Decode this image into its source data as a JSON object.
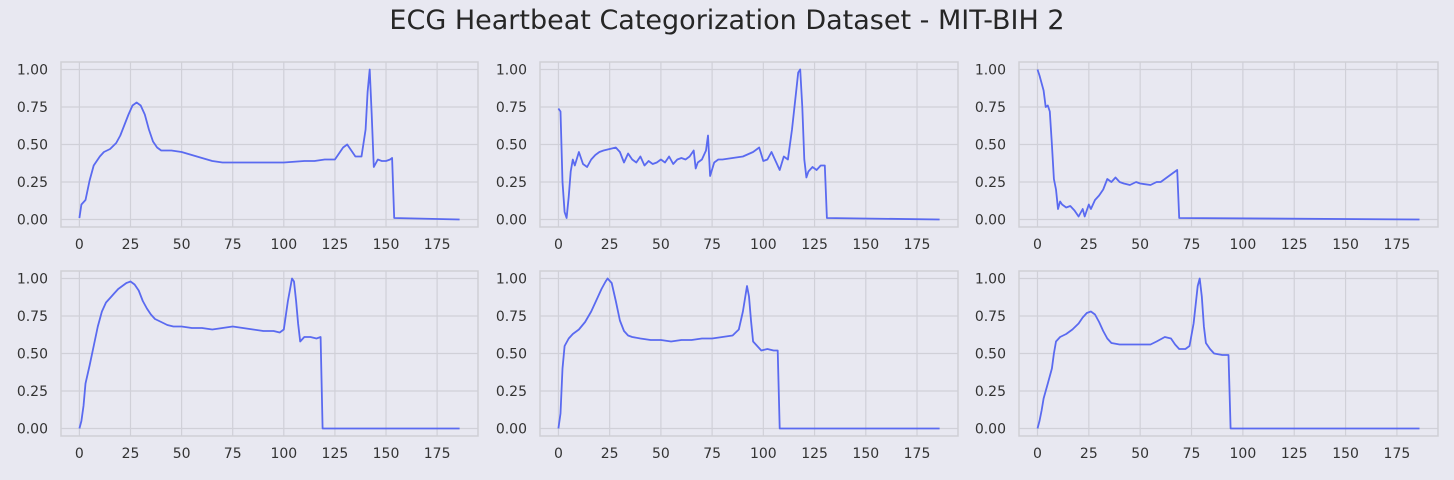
{
  "figure": {
    "title": "ECG Heartbeat Categorization Dataset - MIT-BIH 2"
  },
  "style": {
    "background": "#e8e8f1",
    "plot_background": "#e8e8f1",
    "grid_color": "#d0d0d8",
    "line_color": "#5a6af0",
    "text_color": "#333333"
  },
  "chart_data": [
    {
      "type": "line",
      "xlim": [
        -9,
        195
      ],
      "ylim": [
        -0.05,
        1.05
      ],
      "xticks": [
        0,
        25,
        50,
        75,
        100,
        125,
        150,
        175
      ],
      "yticks": [
        0.0,
        0.25,
        0.5,
        0.75,
        1.0
      ],
      "xtick_labels": [
        "0",
        "25",
        "50",
        "75",
        "100",
        "125",
        "150",
        "175"
      ],
      "ytick_labels": [
        "0.00",
        "0.25",
        "0.50",
        "0.75",
        "1.00"
      ],
      "grid": true,
      "x_end": 186,
      "points": [
        [
          0,
          0.01
        ],
        [
          1,
          0.1
        ],
        [
          3,
          0.13
        ],
        [
          5,
          0.26
        ],
        [
          7,
          0.36
        ],
        [
          10,
          0.42
        ],
        [
          12,
          0.45
        ],
        [
          15,
          0.47
        ],
        [
          18,
          0.51
        ],
        [
          20,
          0.56
        ],
        [
          22,
          0.63
        ],
        [
          24,
          0.7
        ],
        [
          26,
          0.76
        ],
        [
          28,
          0.78
        ],
        [
          30,
          0.76
        ],
        [
          32,
          0.7
        ],
        [
          34,
          0.6
        ],
        [
          36,
          0.52
        ],
        [
          38,
          0.48
        ],
        [
          40,
          0.46
        ],
        [
          45,
          0.46
        ],
        [
          50,
          0.45
        ],
        [
          55,
          0.43
        ],
        [
          60,
          0.41
        ],
        [
          65,
          0.39
        ],
        [
          70,
          0.38
        ],
        [
          80,
          0.38
        ],
        [
          90,
          0.38
        ],
        [
          100,
          0.38
        ],
        [
          110,
          0.39
        ],
        [
          115,
          0.39
        ],
        [
          120,
          0.4
        ],
        [
          125,
          0.4
        ],
        [
          127,
          0.44
        ],
        [
          129,
          0.48
        ],
        [
          131,
          0.5
        ],
        [
          133,
          0.46
        ],
        [
          135,
          0.42
        ],
        [
          138,
          0.42
        ],
        [
          140,
          0.6
        ],
        [
          141,
          0.85
        ],
        [
          142,
          1.0
        ],
        [
          143,
          0.7
        ],
        [
          144,
          0.35
        ],
        [
          146,
          0.4
        ],
        [
          148,
          0.39
        ],
        [
          150,
          0.39
        ],
        [
          152,
          0.4
        ],
        [
          153,
          0.41
        ],
        [
          154,
          0.01
        ],
        [
          186,
          0.0
        ]
      ]
    },
    {
      "type": "line",
      "xlim": [
        -9,
        195
      ],
      "ylim": [
        -0.05,
        1.05
      ],
      "xticks": [
        0,
        25,
        50,
        75,
        100,
        125,
        150,
        175
      ],
      "yticks": [
        0.0,
        0.25,
        0.5,
        0.75,
        1.0
      ],
      "xtick_labels": [
        "0",
        "25",
        "50",
        "75",
        "100",
        "125",
        "150",
        "175"
      ],
      "ytick_labels": [
        "0.00",
        "0.25",
        "0.50",
        "0.75",
        "1.00"
      ],
      "grid": true,
      "x_end": 186,
      "points": [
        [
          0,
          0.74
        ],
        [
          1,
          0.72
        ],
        [
          2,
          0.25
        ],
        [
          3,
          0.05
        ],
        [
          4,
          0.01
        ],
        [
          5,
          0.15
        ],
        [
          6,
          0.32
        ],
        [
          7,
          0.4
        ],
        [
          8,
          0.36
        ],
        [
          10,
          0.45
        ],
        [
          12,
          0.37
        ],
        [
          14,
          0.35
        ],
        [
          16,
          0.4
        ],
        [
          18,
          0.43
        ],
        [
          20,
          0.45
        ],
        [
          22,
          0.46
        ],
        [
          25,
          0.47
        ],
        [
          28,
          0.48
        ],
        [
          30,
          0.45
        ],
        [
          32,
          0.38
        ],
        [
          34,
          0.44
        ],
        [
          36,
          0.4
        ],
        [
          38,
          0.38
        ],
        [
          40,
          0.42
        ],
        [
          42,
          0.36
        ],
        [
          44,
          0.39
        ],
        [
          46,
          0.37
        ],
        [
          48,
          0.38
        ],
        [
          50,
          0.4
        ],
        [
          52,
          0.38
        ],
        [
          54,
          0.42
        ],
        [
          56,
          0.37
        ],
        [
          58,
          0.4
        ],
        [
          60,
          0.41
        ],
        [
          62,
          0.4
        ],
        [
          64,
          0.42
        ],
        [
          66,
          0.46
        ],
        [
          67,
          0.34
        ],
        [
          68,
          0.38
        ],
        [
          70,
          0.4
        ],
        [
          72,
          0.46
        ],
        [
          73,
          0.56
        ],
        [
          74,
          0.29
        ],
        [
          76,
          0.38
        ],
        [
          78,
          0.4
        ],
        [
          80,
          0.4
        ],
        [
          85,
          0.41
        ],
        [
          90,
          0.42
        ],
        [
          95,
          0.45
        ],
        [
          98,
          0.48
        ],
        [
          100,
          0.39
        ],
        [
          102,
          0.4
        ],
        [
          104,
          0.45
        ],
        [
          106,
          0.39
        ],
        [
          108,
          0.33
        ],
        [
          110,
          0.42
        ],
        [
          112,
          0.4
        ],
        [
          114,
          0.6
        ],
        [
          116,
          0.85
        ],
        [
          117,
          0.98
        ],
        [
          118,
          1.0
        ],
        [
          119,
          0.75
        ],
        [
          120,
          0.4
        ],
        [
          121,
          0.28
        ],
        [
          122,
          0.32
        ],
        [
          124,
          0.35
        ],
        [
          126,
          0.33
        ],
        [
          128,
          0.36
        ],
        [
          130,
          0.36
        ],
        [
          131,
          0.01
        ],
        [
          186,
          0.0
        ]
      ]
    },
    {
      "type": "line",
      "xlim": [
        -9,
        195
      ],
      "ylim": [
        -0.05,
        1.05
      ],
      "xticks": [
        0,
        25,
        50,
        75,
        100,
        125,
        150,
        175
      ],
      "yticks": [
        0.0,
        0.25,
        0.5,
        0.75,
        1.0
      ],
      "xtick_labels": [
        "0",
        "25",
        "50",
        "75",
        "100",
        "125",
        "150",
        "175"
      ],
      "ytick_labels": [
        "0.00",
        "0.25",
        "0.50",
        "0.75",
        "1.00"
      ],
      "grid": true,
      "x_end": 186,
      "points": [
        [
          0,
          1.0
        ],
        [
          1,
          0.96
        ],
        [
          3,
          0.86
        ],
        [
          4,
          0.75
        ],
        [
          5,
          0.76
        ],
        [
          6,
          0.72
        ],
        [
          7,
          0.5
        ],
        [
          8,
          0.27
        ],
        [
          9,
          0.2
        ],
        [
          10,
          0.07
        ],
        [
          11,
          0.12
        ],
        [
          12,
          0.1
        ],
        [
          14,
          0.08
        ],
        [
          16,
          0.09
        ],
        [
          18,
          0.06
        ],
        [
          20,
          0.02
        ],
        [
          22,
          0.07
        ],
        [
          23,
          0.02
        ],
        [
          25,
          0.1
        ],
        [
          26,
          0.07
        ],
        [
          28,
          0.13
        ],
        [
          30,
          0.16
        ],
        [
          32,
          0.2
        ],
        [
          34,
          0.27
        ],
        [
          36,
          0.25
        ],
        [
          38,
          0.28
        ],
        [
          40,
          0.25
        ],
        [
          42,
          0.24
        ],
        [
          45,
          0.23
        ],
        [
          48,
          0.25
        ],
        [
          50,
          0.24
        ],
        [
          55,
          0.23
        ],
        [
          58,
          0.25
        ],
        [
          60,
          0.25
        ],
        [
          62,
          0.27
        ],
        [
          64,
          0.29
        ],
        [
          66,
          0.31
        ],
        [
          68,
          0.33
        ],
        [
          69,
          0.01
        ],
        [
          186,
          0.0
        ]
      ]
    },
    {
      "type": "line",
      "xlim": [
        -9,
        195
      ],
      "ylim": [
        -0.05,
        1.05
      ],
      "xticks": [
        0,
        25,
        50,
        75,
        100,
        125,
        150,
        175
      ],
      "yticks": [
        0.0,
        0.25,
        0.5,
        0.75,
        1.0
      ],
      "xtick_labels": [
        "0",
        "25",
        "50",
        "75",
        "100",
        "125",
        "150",
        "175"
      ],
      "ytick_labels": [
        "0.00",
        "0.25",
        "0.50",
        "0.75",
        "1.00"
      ],
      "grid": true,
      "x_end": 186,
      "points": [
        [
          0,
          0.0
        ],
        [
          1,
          0.05
        ],
        [
          2,
          0.15
        ],
        [
          3,
          0.3
        ],
        [
          5,
          0.42
        ],
        [
          7,
          0.55
        ],
        [
          9,
          0.68
        ],
        [
          11,
          0.78
        ],
        [
          13,
          0.84
        ],
        [
          15,
          0.87
        ],
        [
          17,
          0.9
        ],
        [
          19,
          0.93
        ],
        [
          21,
          0.95
        ],
        [
          23,
          0.97
        ],
        [
          25,
          0.98
        ],
        [
          27,
          0.96
        ],
        [
          29,
          0.92
        ],
        [
          31,
          0.85
        ],
        [
          33,
          0.8
        ],
        [
          35,
          0.76
        ],
        [
          37,
          0.73
        ],
        [
          40,
          0.71
        ],
        [
          43,
          0.69
        ],
        [
          46,
          0.68
        ],
        [
          50,
          0.68
        ],
        [
          55,
          0.67
        ],
        [
          60,
          0.67
        ],
        [
          65,
          0.66
        ],
        [
          70,
          0.67
        ],
        [
          75,
          0.68
        ],
        [
          80,
          0.67
        ],
        [
          85,
          0.66
        ],
        [
          90,
          0.65
        ],
        [
          95,
          0.65
        ],
        [
          98,
          0.64
        ],
        [
          100,
          0.66
        ],
        [
          102,
          0.85
        ],
        [
          104,
          1.0
        ],
        [
          105,
          0.98
        ],
        [
          106,
          0.85
        ],
        [
          107,
          0.7
        ],
        [
          108,
          0.58
        ],
        [
          110,
          0.61
        ],
        [
          113,
          0.61
        ],
        [
          116,
          0.6
        ],
        [
          118,
          0.61
        ],
        [
          119,
          0.0
        ],
        [
          186,
          0.0
        ]
      ]
    },
    {
      "type": "line",
      "xlim": [
        -9,
        195
      ],
      "ylim": [
        -0.05,
        1.05
      ],
      "xticks": [
        0,
        25,
        50,
        75,
        100,
        125,
        150,
        175
      ],
      "yticks": [
        0.0,
        0.25,
        0.5,
        0.75,
        1.0
      ],
      "xtick_labels": [
        "0",
        "25",
        "50",
        "75",
        "100",
        "125",
        "150",
        "175"
      ],
      "ytick_labels": [
        "0.00",
        "0.25",
        "0.50",
        "0.75",
        "1.00"
      ],
      "grid": true,
      "x_end": 186,
      "points": [
        [
          0,
          0.0
        ],
        [
          1,
          0.1
        ],
        [
          2,
          0.4
        ],
        [
          3,
          0.55
        ],
        [
          5,
          0.6
        ],
        [
          7,
          0.63
        ],
        [
          10,
          0.66
        ],
        [
          13,
          0.71
        ],
        [
          16,
          0.78
        ],
        [
          19,
          0.87
        ],
        [
          21,
          0.93
        ],
        [
          23,
          0.98
        ],
        [
          24,
          1.0
        ],
        [
          26,
          0.97
        ],
        [
          28,
          0.85
        ],
        [
          30,
          0.72
        ],
        [
          32,
          0.65
        ],
        [
          34,
          0.62
        ],
        [
          36,
          0.61
        ],
        [
          40,
          0.6
        ],
        [
          45,
          0.59
        ],
        [
          50,
          0.59
        ],
        [
          55,
          0.58
        ],
        [
          60,
          0.59
        ],
        [
          65,
          0.59
        ],
        [
          70,
          0.6
        ],
        [
          75,
          0.6
        ],
        [
          80,
          0.61
        ],
        [
          85,
          0.62
        ],
        [
          88,
          0.66
        ],
        [
          90,
          0.78
        ],
        [
          92,
          0.95
        ],
        [
          93,
          0.88
        ],
        [
          94,
          0.72
        ],
        [
          95,
          0.58
        ],
        [
          97,
          0.55
        ],
        [
          99,
          0.52
        ],
        [
          102,
          0.53
        ],
        [
          105,
          0.52
        ],
        [
          107,
          0.52
        ],
        [
          108,
          0.0
        ],
        [
          186,
          0.0
        ]
      ]
    },
    {
      "type": "line",
      "xlim": [
        -9,
        195
      ],
      "ylim": [
        -0.05,
        1.05
      ],
      "xticks": [
        0,
        25,
        50,
        75,
        100,
        125,
        150,
        175
      ],
      "yticks": [
        0.0,
        0.25,
        0.5,
        0.75,
        1.0
      ],
      "xtick_labels": [
        "0",
        "25",
        "50",
        "75",
        "100",
        "125",
        "150",
        "175"
      ],
      "ytick_labels": [
        "0.00",
        "0.25",
        "0.50",
        "0.75",
        "1.00"
      ],
      "grid": true,
      "x_end": 186,
      "points": [
        [
          0,
          0.0
        ],
        [
          1,
          0.05
        ],
        [
          2,
          0.12
        ],
        [
          3,
          0.2
        ],
        [
          5,
          0.3
        ],
        [
          7,
          0.4
        ],
        [
          8,
          0.5
        ],
        [
          9,
          0.58
        ],
        [
          11,
          0.61
        ],
        [
          14,
          0.63
        ],
        [
          17,
          0.66
        ],
        [
          20,
          0.7
        ],
        [
          22,
          0.74
        ],
        [
          24,
          0.77
        ],
        [
          26,
          0.78
        ],
        [
          28,
          0.76
        ],
        [
          30,
          0.71
        ],
        [
          32,
          0.65
        ],
        [
          34,
          0.6
        ],
        [
          36,
          0.57
        ],
        [
          40,
          0.56
        ],
        [
          45,
          0.56
        ],
        [
          50,
          0.56
        ],
        [
          55,
          0.56
        ],
        [
          58,
          0.58
        ],
        [
          62,
          0.61
        ],
        [
          65,
          0.6
        ],
        [
          67,
          0.56
        ],
        [
          69,
          0.53
        ],
        [
          72,
          0.53
        ],
        [
          74,
          0.55
        ],
        [
          76,
          0.7
        ],
        [
          78,
          0.95
        ],
        [
          79,
          1.0
        ],
        [
          80,
          0.88
        ],
        [
          81,
          0.68
        ],
        [
          82,
          0.57
        ],
        [
          84,
          0.53
        ],
        [
          86,
          0.5
        ],
        [
          90,
          0.49
        ],
        [
          93,
          0.49
        ],
        [
          94,
          0.0
        ],
        [
          186,
          0.0
        ]
      ]
    }
  ]
}
